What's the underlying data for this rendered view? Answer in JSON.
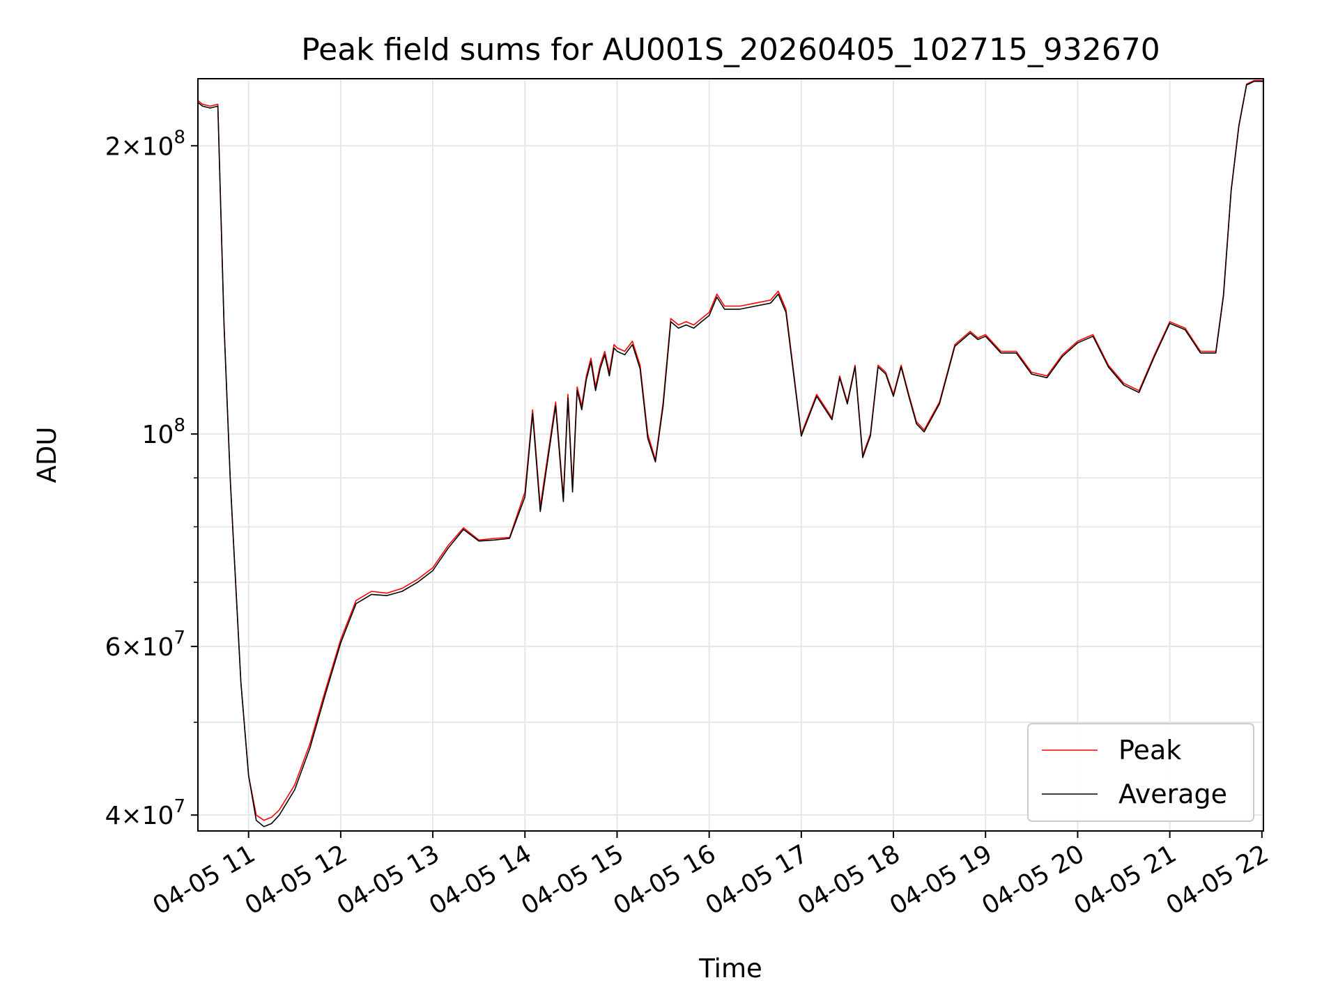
{
  "chart_data": {
    "type": "line",
    "title": "Peak field sums for AU001S_20260405_102715_932670",
    "xlabel": "Time",
    "ylabel": "ADU",
    "xscale": "time",
    "yscale": "log",
    "xlim": [
      "04-05 10:27",
      "04-05 22:01"
    ],
    "ylim": [
      38500000,
      235000000
    ],
    "grid": true,
    "legend_position": "lower-right",
    "x_ticks": [
      "04-05 11",
      "04-05 12",
      "04-05 13",
      "04-05 14",
      "04-05 15",
      "04-05 16",
      "04-05 17",
      "04-05 18",
      "04-05 19",
      "04-05 20",
      "04-05 21",
      "04-05 22"
    ],
    "y_ticks": [
      {
        "value": 40000000,
        "base": "4",
        "exp": "7"
      },
      {
        "value": 60000000,
        "base": "6",
        "exp": "7"
      },
      {
        "value": 100000000,
        "base": "",
        "exp": "8"
      },
      {
        "value": 200000000,
        "base": "2",
        "exp": "8"
      }
    ],
    "y_minor_ticks": [
      50000000,
      70000000,
      80000000,
      90000000
    ],
    "x": [
      "10:27",
      "10:30",
      "10:35",
      "10:40",
      "10:44",
      "10:48",
      "10:50",
      "10:55",
      "11:00",
      "11:05",
      "11:10",
      "11:15",
      "11:20",
      "11:30",
      "11:40",
      "11:50",
      "12:00",
      "12:10",
      "12:20",
      "12:30",
      "12:40",
      "12:50",
      "13:00",
      "13:10",
      "13:20",
      "13:30",
      "13:40",
      "13:50",
      "14:00",
      "14:05",
      "14:10",
      "14:20",
      "14:25",
      "14:28",
      "14:31",
      "14:34",
      "14:37",
      "14:40",
      "14:43",
      "14:46",
      "14:49",
      "14:52",
      "14:55",
      "14:58",
      "15:00",
      "15:05",
      "15:10",
      "15:15",
      "15:20",
      "15:25",
      "15:30",
      "15:35",
      "15:40",
      "15:45",
      "15:50",
      "15:55",
      "16:00",
      "16:05",
      "16:10",
      "16:20",
      "16:30",
      "16:40",
      "16:45",
      "16:50",
      "17:00",
      "17:10",
      "17:20",
      "17:25",
      "17:30",
      "17:35",
      "17:40",
      "17:42",
      "17:45",
      "17:50",
      "17:55",
      "18:00",
      "18:05",
      "18:10",
      "18:15",
      "18:20",
      "18:30",
      "18:40",
      "18:50",
      "18:55",
      "19:00",
      "19:10",
      "19:20",
      "19:30",
      "19:40",
      "19:50",
      "20:00",
      "20:10",
      "20:20",
      "20:30",
      "20:40",
      "20:50",
      "21:00",
      "21:10",
      "21:20",
      "21:30",
      "21:35",
      "21:40",
      "21:45",
      "21:50",
      "21:55",
      "22:01"
    ],
    "series": [
      {
        "name": "Peak",
        "color": "#ff0000",
        "values": [
          223000000,
          221000000,
          220000000,
          221000000,
          130000000,
          90000000,
          78000000,
          55000000,
          44000000,
          40000000,
          39500000,
          39800000,
          40500000,
          43000000,
          47500000,
          54000000,
          61000000,
          67000000,
          68500000,
          68200000,
          69000000,
          70500000,
          72500000,
          76500000,
          79800000,
          77500000,
          77800000,
          78000000,
          87000000,
          106000000,
          84000000,
          108000000,
          86000000,
          110000000,
          88000000,
          112000000,
          107000000,
          115000000,
          120000000,
          112000000,
          118000000,
          122000000,
          116000000,
          124000000,
          123000000,
          122000000,
          125000000,
          118000000,
          100000000,
          94000000,
          108000000,
          132000000,
          130000000,
          131000000,
          130000000,
          132000000,
          134000000,
          140000000,
          136000000,
          136000000,
          137000000,
          138000000,
          141000000,
          135000000,
          100000000,
          110000000,
          104000000,
          115000000,
          108000000,
          118000000,
          95000000,
          97000000,
          100000000,
          118000000,
          116000000,
          110000000,
          118000000,
          110000000,
          103000000,
          101000000,
          108000000,
          124000000,
          128000000,
          126000000,
          127000000,
          122000000,
          122000000,
          116000000,
          115000000,
          121000000,
          125000000,
          127000000,
          118000000,
          113000000,
          111000000,
          121000000,
          131000000,
          129000000,
          122000000,
          122000000,
          140000000,
          180000000,
          210000000,
          232000000,
          234000000,
          234000000
        ]
      },
      {
        "name": "Average",
        "color": "#000000",
        "values": [
          222000000,
          220000000,
          219000000,
          220000000,
          130000000,
          90000000,
          78000000,
          55000000,
          44000000,
          39500000,
          38900000,
          39200000,
          40000000,
          42500000,
          47000000,
          53500000,
          60500000,
          66500000,
          68000000,
          67800000,
          68500000,
          70000000,
          72000000,
          76000000,
          79500000,
          77300000,
          77500000,
          77800000,
          86000000,
          105000000,
          83000000,
          107000000,
          85000000,
          109000000,
          87000000,
          111000000,
          106000000,
          114000000,
          119000000,
          111000000,
          117000000,
          121000000,
          115000000,
          123000000,
          122000000,
          121000000,
          124000000,
          117000000,
          99000000,
          93500000,
          107000000,
          131000000,
          129000000,
          130000000,
          129000000,
          131000000,
          133000000,
          139000000,
          135000000,
          135000000,
          136000000,
          137000000,
          140000000,
          134000000,
          99500000,
          109500000,
          103500000,
          114500000,
          107500000,
          117500000,
          94500000,
          96500000,
          99500000,
          117500000,
          115500000,
          109500000,
          117500000,
          109500000,
          102500000,
          100500000,
          107500000,
          123500000,
          127500000,
          125500000,
          126500000,
          121500000,
          121500000,
          115500000,
          114500000,
          120500000,
          124500000,
          126500000,
          117500000,
          112500000,
          110500000,
          120500000,
          130500000,
          128500000,
          121500000,
          121500000,
          139500000,
          179500000,
          209500000,
          231500000,
          233500000,
          233500000
        ]
      }
    ]
  }
}
